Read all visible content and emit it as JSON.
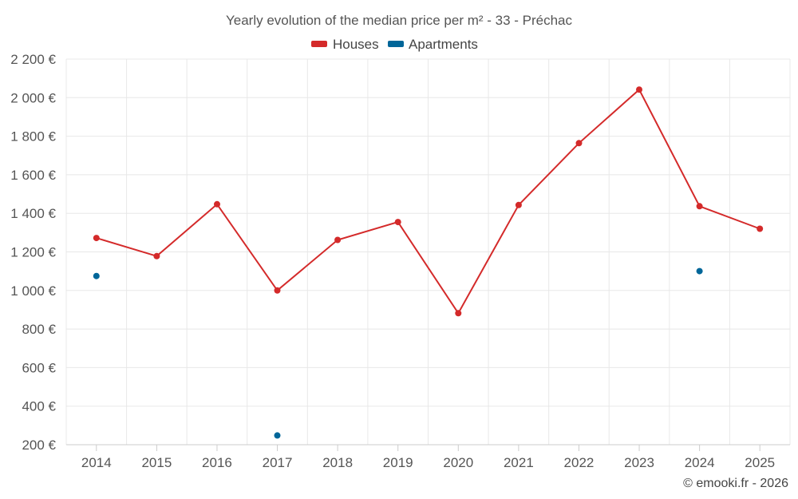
{
  "chart_data": {
    "type": "line",
    "title": "Yearly evolution of the median price per m² - 33 - Préchac",
    "categories": [
      "2014",
      "2015",
      "2016",
      "2017",
      "2018",
      "2019",
      "2020",
      "2021",
      "2022",
      "2023",
      "2024",
      "2025"
    ],
    "series": [
      {
        "name": "Houses",
        "color": "#d42a2a",
        "values": [
          1272,
          1178,
          1447,
          1000,
          1262,
          1355,
          882,
          1443,
          1764,
          2042,
          1437,
          1320
        ]
      },
      {
        "name": "Apartments",
        "color": "#006699",
        "values": [
          1075,
          null,
          null,
          248,
          null,
          null,
          null,
          null,
          null,
          null,
          1100,
          null
        ]
      }
    ],
    "ylim": [
      200,
      2200
    ],
    "yticks": [
      200,
      400,
      600,
      800,
      1000,
      1200,
      1400,
      1600,
      1800,
      2000,
      2200
    ],
    "ytick_labels": [
      "200 €",
      "400 €",
      "600 €",
      "800 €",
      "1 000 €",
      "1 200 €",
      "1 400 €",
      "1 600 €",
      "1 800 €",
      "2 000 €",
      "2 200 €"
    ],
    "xlabel": "",
    "ylabel": "",
    "grid": true,
    "legend_position": "top-center"
  },
  "credit": "© emooki.fr - 2026"
}
